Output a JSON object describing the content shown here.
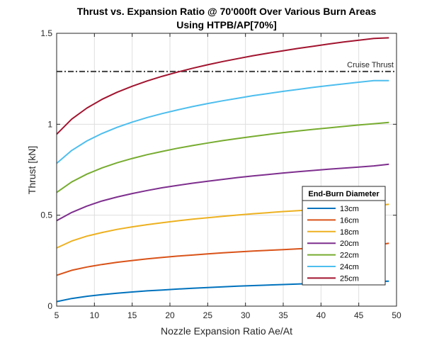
{
  "chart_data": {
    "type": "line",
    "title": [
      "Thrust vs. Expansion Ratio @ 70'000ft Over Various Burn Areas",
      "Using HTPB/AP[70%]"
    ],
    "xlabel": "Nozzle Expansion Ratio Ae/At",
    "ylabel": "Thrust [kN]",
    "xlim": [
      5,
      50
    ],
    "ylim": [
      0,
      1.5
    ],
    "xticks": [
      5,
      10,
      15,
      20,
      25,
      30,
      35,
      40,
      45,
      50
    ],
    "xtick_labels": [
      "5",
      "10",
      "15",
      "20",
      "25",
      "30",
      "35",
      "40",
      "45",
      "50"
    ],
    "yticks": [
      0,
      0.5,
      1,
      1.5
    ],
    "ytick_labels": [
      "0",
      "0.5",
      "1",
      "1.5"
    ],
    "grid": true,
    "legend": {
      "title": "End-Burn Diameter",
      "placement": "lower-right"
    },
    "x": [
      5,
      7,
      9,
      11,
      13,
      15,
      17,
      19,
      21,
      23,
      25,
      27,
      29,
      31,
      33,
      35,
      37,
      39,
      41,
      43,
      45,
      47,
      49
    ],
    "series": [
      {
        "name": "13cm",
        "color": "#0072BD",
        "values": [
          0.025,
          0.042,
          0.054,
          0.063,
          0.071,
          0.078,
          0.084,
          0.089,
          0.094,
          0.098,
          0.102,
          0.106,
          0.11,
          0.113,
          0.116,
          0.119,
          0.122,
          0.125,
          0.128,
          0.13,
          0.133,
          0.135,
          0.137
        ]
      },
      {
        "name": "16cm",
        "color": "#D95319",
        "values": [
          0.17,
          0.197,
          0.215,
          0.229,
          0.241,
          0.251,
          0.26,
          0.268,
          0.275,
          0.281,
          0.287,
          0.293,
          0.298,
          0.303,
          0.307,
          0.311,
          0.315,
          0.319,
          0.323,
          0.326,
          0.33,
          0.333,
          0.346
        ]
      },
      {
        "name": "18cm",
        "color": "#EDB120",
        "values": [
          0.32,
          0.358,
          0.385,
          0.405,
          0.422,
          0.436,
          0.448,
          0.459,
          0.469,
          0.478,
          0.486,
          0.494,
          0.501,
          0.508,
          0.514,
          0.52,
          0.525,
          0.531,
          0.536,
          0.541,
          0.545,
          0.55,
          0.56
        ]
      },
      {
        "name": "20cm",
        "color": "#7E2F8E",
        "values": [
          0.47,
          0.515,
          0.55,
          0.578,
          0.6,
          0.619,
          0.636,
          0.651,
          0.664,
          0.676,
          0.687,
          0.697,
          0.707,
          0.716,
          0.724,
          0.732,
          0.739,
          0.746,
          0.753,
          0.759,
          0.765,
          0.771,
          0.78
        ]
      },
      {
        "name": "22cm",
        "color": "#77AC30",
        "values": [
          0.625,
          0.683,
          0.726,
          0.76,
          0.788,
          0.812,
          0.833,
          0.851,
          0.868,
          0.883,
          0.897,
          0.91,
          0.922,
          0.933,
          0.944,
          0.954,
          0.963,
          0.972,
          0.98,
          0.988,
          0.996,
          1.003,
          1.01
        ]
      },
      {
        "name": "24cm",
        "color": "#4DBEEE",
        "values": [
          0.785,
          0.856,
          0.908,
          0.949,
          0.983,
          1.012,
          1.037,
          1.059,
          1.079,
          1.097,
          1.114,
          1.129,
          1.143,
          1.157,
          1.169,
          1.181,
          1.192,
          1.203,
          1.213,
          1.222,
          1.231,
          1.24,
          1.24
        ]
      },
      {
        "name": "25cm",
        "color": "#A2142F",
        "values": [
          0.945,
          1.028,
          1.089,
          1.137,
          1.176,
          1.209,
          1.238,
          1.264,
          1.287,
          1.308,
          1.327,
          1.345,
          1.361,
          1.377,
          1.391,
          1.404,
          1.417,
          1.429,
          1.441,
          1.452,
          1.462,
          1.472,
          1.475
        ]
      }
    ],
    "reference_line": {
      "label": "Cruise Thrust",
      "y": 1.29,
      "style": "dash-dot",
      "color": "#404040"
    }
  }
}
